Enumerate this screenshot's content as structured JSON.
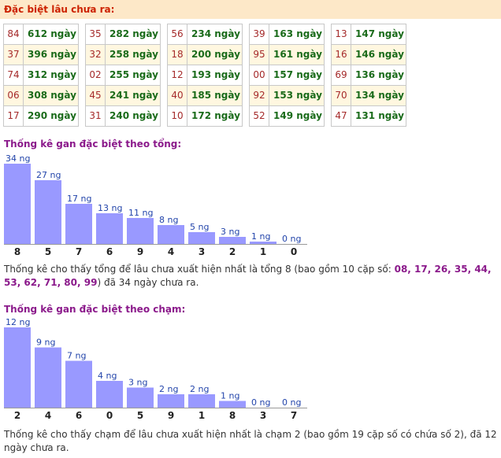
{
  "header": {
    "title": "Đặc biệt lâu chưa ra:"
  },
  "gan_columns": [
    [
      {
        "num": "84",
        "days": "612 ngày"
      },
      {
        "num": "37",
        "days": "396 ngày"
      },
      {
        "num": "74",
        "days": "312 ngày"
      },
      {
        "num": "06",
        "days": "308 ngày"
      },
      {
        "num": "17",
        "days": "290 ngày"
      }
    ],
    [
      {
        "num": "35",
        "days": "282 ngày"
      },
      {
        "num": "32",
        "days": "258 ngày"
      },
      {
        "num": "02",
        "days": "255 ngày"
      },
      {
        "num": "45",
        "days": "241 ngày"
      },
      {
        "num": "31",
        "days": "240 ngày"
      }
    ],
    [
      {
        "num": "56",
        "days": "234 ngày"
      },
      {
        "num": "18",
        "days": "200 ngày"
      },
      {
        "num": "12",
        "days": "193 ngày"
      },
      {
        "num": "40",
        "days": "185 ngày"
      },
      {
        "num": "10",
        "days": "172 ngày"
      }
    ],
    [
      {
        "num": "39",
        "days": "163 ngày"
      },
      {
        "num": "95",
        "days": "161 ngày"
      },
      {
        "num": "00",
        "days": "157 ngày"
      },
      {
        "num": "92",
        "days": "153 ngày"
      },
      {
        "num": "52",
        "days": "149 ngày"
      }
    ],
    [
      {
        "num": "13",
        "days": "147 ngày"
      },
      {
        "num": "16",
        "days": "146 ngày"
      },
      {
        "num": "69",
        "days": "136 ngày"
      },
      {
        "num": "70",
        "days": "134 ngày"
      },
      {
        "num": "47",
        "days": "131 ngày"
      }
    ]
  ],
  "sum_section": {
    "title": "Thống kê gan đặc biệt theo tổng:",
    "desc_prefix": "Thống kê cho thấy tổng để lâu chưa xuất hiện nhất là tổng 8 (bao gồm 10 cặp số: ",
    "desc_highlight": "08, 17, 26, 35, 44, 53, 62, 71, 80, 99",
    "desc_suffix": ") đã 34 ngày chưa ra."
  },
  "touch_section": {
    "title": "Thống kê gan đặc biệt theo chạm:",
    "desc": "Thống kê cho thấy chạm để lâu chưa xuất hiện nhất là chạm 2 (bao gồm 19 cặp số có chứa số 2), đã 12 ngày chưa ra."
  },
  "colors": {
    "bar": "#9999ff",
    "bar_label": "#2244aa",
    "category": "#222222",
    "header_bg": "#fde8c8",
    "header_text": "#cc2200",
    "title": "#8b1a8b"
  },
  "chart_data": [
    {
      "type": "bar",
      "categories": [
        "8",
        "5",
        "7",
        "6",
        "9",
        "4",
        "3",
        "2",
        "1",
        "0"
      ],
      "values": [
        34,
        27,
        17,
        13,
        11,
        8,
        5,
        3,
        1,
        0
      ],
      "labels": [
        "34 ng",
        "27 ng",
        "17 ng",
        "13 ng",
        "11 ng",
        "8 ng",
        "5 ng",
        "3 ng",
        "1 ng",
        "0 ng"
      ],
      "ylim": [
        0,
        34
      ]
    },
    {
      "type": "bar",
      "categories": [
        "2",
        "4",
        "6",
        "0",
        "5",
        "9",
        "1",
        "8",
        "3",
        "7"
      ],
      "values": [
        12,
        9,
        7,
        4,
        3,
        2,
        2,
        1,
        0,
        0
      ],
      "labels": [
        "12 ng",
        "9 ng",
        "7 ng",
        "4 ng",
        "3 ng",
        "2 ng",
        "2 ng",
        "1 ng",
        "0 ng",
        "0 ng"
      ],
      "ylim": [
        0,
        12
      ]
    }
  ]
}
